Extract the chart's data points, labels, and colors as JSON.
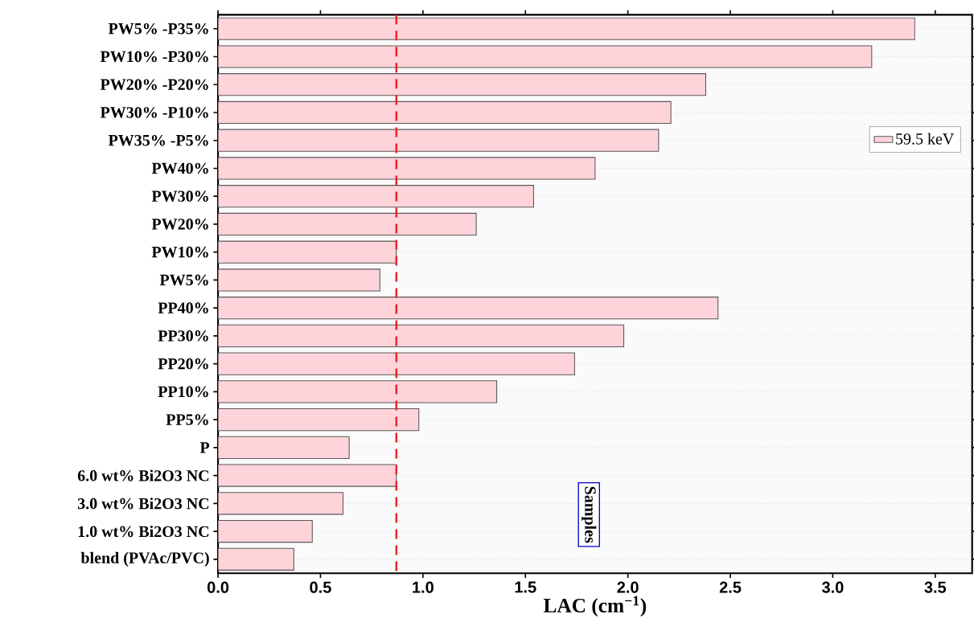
{
  "chart_data": {
    "type": "bar",
    "orientation": "horizontal",
    "xlabel": "LAC (cm$^{−1}$)",
    "categories": [
      "PW5% -P35%",
      "PW10% -P30%",
      "PW20% -P20%",
      "PW30% -P10%",
      "PW35% -P5%",
      "PW40%",
      "PW30%",
      "PW20%",
      "PW10%",
      "PW5%",
      "PP40%",
      "PP30%",
      "PP20%",
      "PP10%",
      "PP5%",
      "P",
      "6.0 wt% Bi2O3 NC",
      "3.0 wt% Bi2O3 NC",
      "1.0 wt% Bi2O3 NC",
      "blend (PVAc/PVC)"
    ],
    "series": [
      {
        "name": "59.5 keV",
        "color": "#ffd3da",
        "values": [
          3.4,
          3.19,
          2.38,
          2.21,
          2.15,
          1.84,
          1.54,
          1.26,
          0.87,
          0.79,
          2.44,
          1.98,
          1.74,
          1.36,
          0.98,
          0.64,
          0.87,
          0.61,
          0.46,
          0.37
        ]
      }
    ],
    "xlim": [
      0,
      3.68
    ],
    "xticks": [
      {
        "value": 0,
        "label": "0.0"
      },
      {
        "value": 0.5,
        "label": "0.5"
      },
      {
        "value": 1,
        "label": "1.0"
      },
      {
        "value": 1.5,
        "label": "1.5"
      },
      {
        "value": 2,
        "label": "2.0"
      },
      {
        "value": 2.5,
        "label": "2.5"
      },
      {
        "value": 3,
        "label": "3.0"
      },
      {
        "value": 3.5,
        "label": "3.5"
      }
    ],
    "ref_lines": [
      {
        "axis": "x",
        "value": 0.87,
        "color": "#e8262a",
        "line_style": "dashed"
      }
    ],
    "annotations": [
      "Samples"
    ],
    "grid": "y",
    "legend": "top right"
  }
}
